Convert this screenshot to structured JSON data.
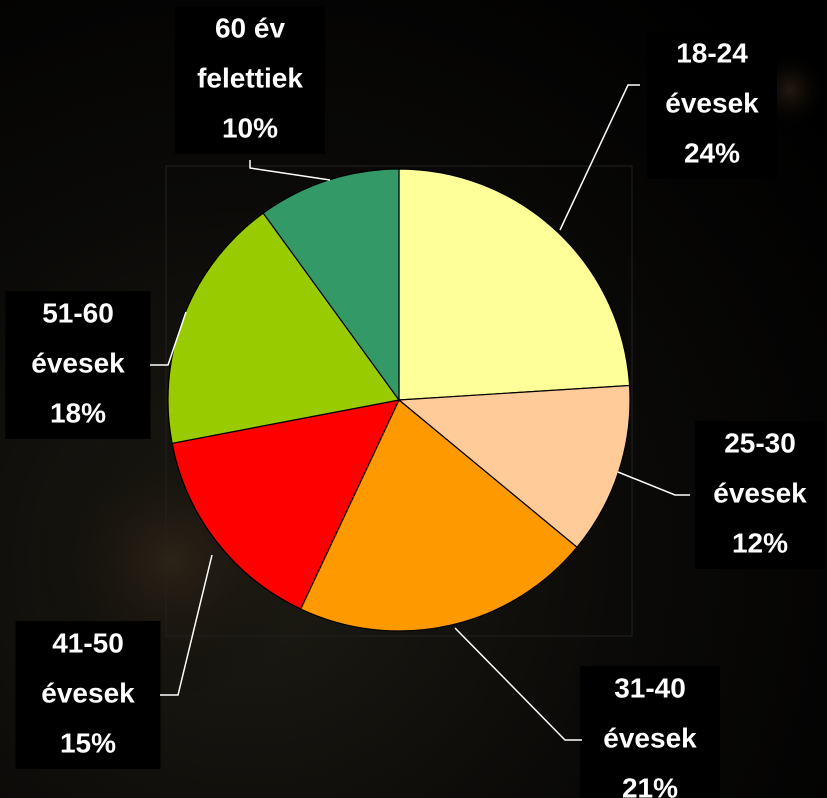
{
  "chart_data": {
    "type": "pie",
    "categories": [
      [
        "18-24",
        "évesek"
      ],
      [
        "25-30",
        "évesek"
      ],
      [
        "31-40",
        "évesek"
      ],
      [
        "41-50",
        "évesek"
      ],
      [
        "51-60",
        "évesek"
      ],
      [
        "60 év",
        "felettiek"
      ]
    ],
    "values": [
      24,
      12,
      21,
      15,
      18,
      10
    ],
    "value_labels": [
      "24%",
      "12%",
      "21%",
      "15%",
      "18%",
      "10%"
    ],
    "colors": [
      "#ffff99",
      "#ffcc99",
      "#ff9900",
      "#ff0000",
      "#99cc00",
      "#339966"
    ]
  }
}
